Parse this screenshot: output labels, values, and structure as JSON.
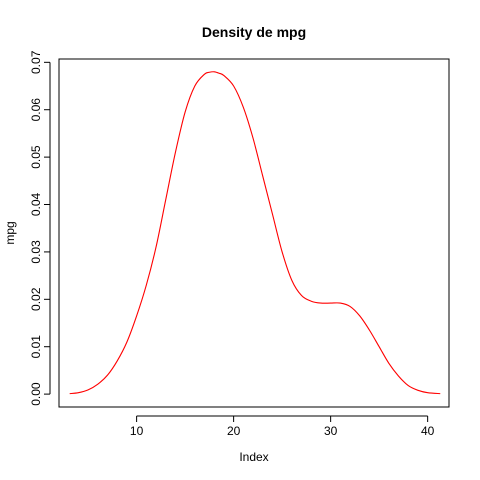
{
  "chart_data": {
    "type": "line",
    "title": "Density de  mpg",
    "xlabel": "Index",
    "ylabel": "mpg",
    "xlim": [
      2.0,
      42.2
    ],
    "ylim": [
      -0.00272,
      0.0707
    ],
    "x_ticks": [
      10,
      20,
      30,
      40
    ],
    "y_ticks": [
      0.0,
      0.01,
      0.02,
      0.03,
      0.04,
      0.05,
      0.06,
      0.07
    ],
    "y_tick_labels": [
      "0.00",
      "0.01",
      "0.02",
      "0.03",
      "0.04",
      "0.05",
      "0.06",
      "0.07"
    ],
    "grid": false,
    "line_color": "#ff0000",
    "series": [
      {
        "x": [
          3.1,
          4,
          5,
          6,
          7,
          8,
          9,
          10,
          11,
          12,
          13,
          14,
          15,
          16,
          17,
          17.5,
          18,
          18.5,
          19,
          20,
          21,
          22,
          23,
          24,
          25,
          26,
          27,
          28,
          29,
          30,
          31,
          32,
          33,
          34,
          35,
          36,
          37,
          38,
          39,
          40,
          41.3
        ],
        "y": [
          0.0001,
          0.0003,
          0.0009,
          0.0021,
          0.004,
          0.007,
          0.011,
          0.0165,
          0.023,
          0.031,
          0.041,
          0.051,
          0.0595,
          0.065,
          0.0675,
          0.0679,
          0.068,
          0.0677,
          0.0672,
          0.065,
          0.0605,
          0.054,
          0.046,
          0.038,
          0.03,
          0.024,
          0.0208,
          0.0196,
          0.0192,
          0.0192,
          0.0192,
          0.0185,
          0.0165,
          0.0135,
          0.01,
          0.0065,
          0.0038,
          0.0018,
          0.0008,
          0.0003,
          0.0001
        ]
      }
    ]
  }
}
